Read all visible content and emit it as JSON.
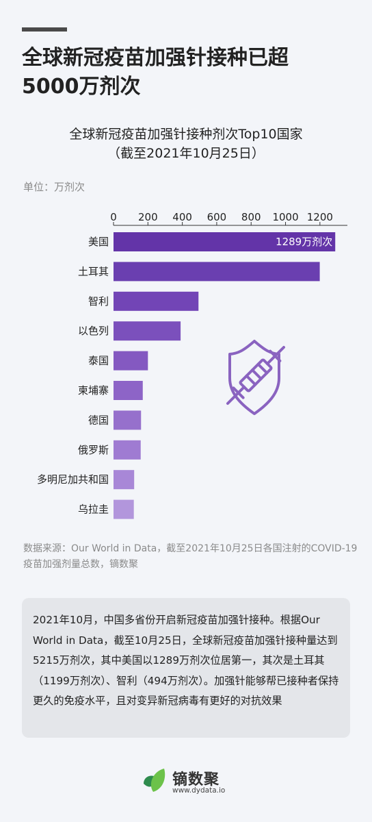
{
  "headline": {
    "line1": "全球新冠疫苗加强针接种已超",
    "line2": "5000万剂次"
  },
  "chart_title": {
    "line1": "全球新冠疫苗加强针接种剂次Top10国家",
    "line2": "（截至2021年10月25日）"
  },
  "unit_label": "单位：万剂次",
  "chart_data": {
    "type": "bar",
    "orientation": "horizontal",
    "categories": [
      "美国",
      "土耳其",
      "智利",
      "以色列",
      "泰国",
      "柬埔寨",
      "德国",
      "俄罗斯",
      "多明尼加共和国",
      "乌拉圭"
    ],
    "values": [
      1289,
      1199,
      494,
      390,
      200,
      170,
      160,
      158,
      120,
      118
    ],
    "xlim": [
      0,
      1300
    ],
    "ticks": [
      0,
      200,
      400,
      600,
      800,
      1000,
      1200
    ],
    "tick_labels": [
      "0",
      "200",
      "400",
      "600",
      "800",
      "1000",
      "1200"
    ],
    "data_labels": [
      "1289万剂次",
      "",
      "",
      "",
      "",
      "",
      "",
      "",
      "",
      ""
    ],
    "axis_position": "top",
    "colors": [
      "#6334a8",
      "#6a3fb0",
      "#7245b6",
      "#7b50bc",
      "#8459c1",
      "#8d64c7",
      "#9670cc",
      "#9f7bd2",
      "#a887d7",
      "#b296dc"
    ],
    "decoration_icon": "shield-syringe-icon",
    "decoration_color": "#8a63c0"
  },
  "source": "数据来源：Our World in Data，截至2021年10月25日各国注射的COVID-19 疫苗加强剂量总数，镝数聚",
  "summary": "2021年10月，中国多省份开启新冠疫苗加强针接种。根据Our World in Data，截至10月25日，全球新冠疫苗加强针接种量达到5215万剂次，其中美国以1289万剂次位居第一，其次是土耳其（1199万剂次）、智利（494万剂次）。加强针能够帮已接种者保持更久的免疫水平，且对变异新冠病毒有更好的对抗效果",
  "logo": {
    "name": "镝数聚",
    "url": "www.dydata.io",
    "icon": "leaf-icon",
    "colors": [
      "#2e8b4e",
      "#6cc24a"
    ]
  }
}
